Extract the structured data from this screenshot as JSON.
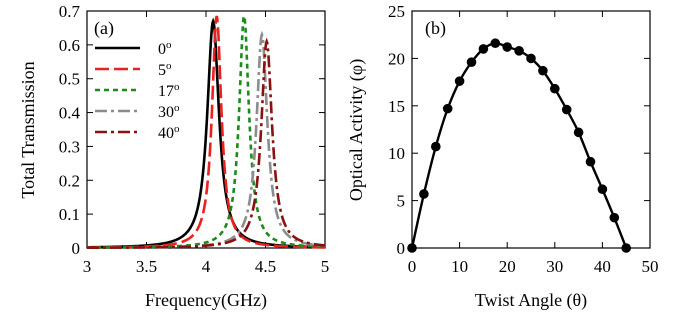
{
  "chart_data": [
    {
      "type": "line",
      "panel_label": "(a)",
      "xlabel": "Frequency(GHz)",
      "ylabel": "Total Transmission",
      "xlim": [
        3,
        5
      ],
      "ylim": [
        0,
        0.7
      ],
      "xticks": [
        "3",
        "3.5",
        "4",
        "4.5",
        "5"
      ],
      "yticks": [
        "0",
        "0.1",
        "0.2",
        "0.3",
        "0.4",
        "0.5",
        "0.6",
        "0.7"
      ],
      "legend_position": "top-left",
      "series": [
        {
          "name": "0o",
          "color": "#000000",
          "dash": "solid",
          "peak_x": 4.06,
          "peak_y": 0.67,
          "half_width": 0.06
        },
        {
          "name": "5o",
          "color": "#e8231f",
          "dash": "long-dash",
          "peak_x": 4.09,
          "peak_y": 0.685,
          "half_width": 0.048
        },
        {
          "name": "17o",
          "color": "#1a8c1a",
          "dash": "short-dash",
          "peak_x": 4.32,
          "peak_y": 0.685,
          "half_width": 0.05
        },
        {
          "name": "30o",
          "color": "#8c8c8c",
          "dash": "dash-dot",
          "peak_x": 4.47,
          "peak_y": 0.63,
          "half_width": 0.055
        },
        {
          "name": "40o",
          "color": "#8b1010",
          "dash": "dash-dot",
          "peak_x": 4.51,
          "peak_y": 0.61,
          "half_width": 0.055
        }
      ]
    },
    {
      "type": "line",
      "panel_label": "(b)",
      "xlabel": "Twist Angle (θ)",
      "ylabel": "Optical Activity (φ)",
      "xlim": [
        0,
        50
      ],
      "ylim": [
        0,
        25
      ],
      "xticks": [
        "0",
        "10",
        "20",
        "30",
        "40",
        "50"
      ],
      "yticks": [
        "0",
        "5",
        "10",
        "15",
        "20",
        "25"
      ],
      "series": [
        {
          "color": "#000000",
          "x": [
            0,
            2.5,
            5,
            7.5,
            10,
            12.5,
            15,
            17.5,
            20,
            22.5,
            25,
            27.5,
            30,
            32.5,
            35,
            37.5,
            40,
            42.5,
            45
          ],
          "y": [
            0,
            5.7,
            10.7,
            14.7,
            17.6,
            19.6,
            21.0,
            21.6,
            21.2,
            20.8,
            20.0,
            18.7,
            16.8,
            14.6,
            12.2,
            9.1,
            6.2,
            3.2,
            0
          ]
        }
      ]
    }
  ]
}
